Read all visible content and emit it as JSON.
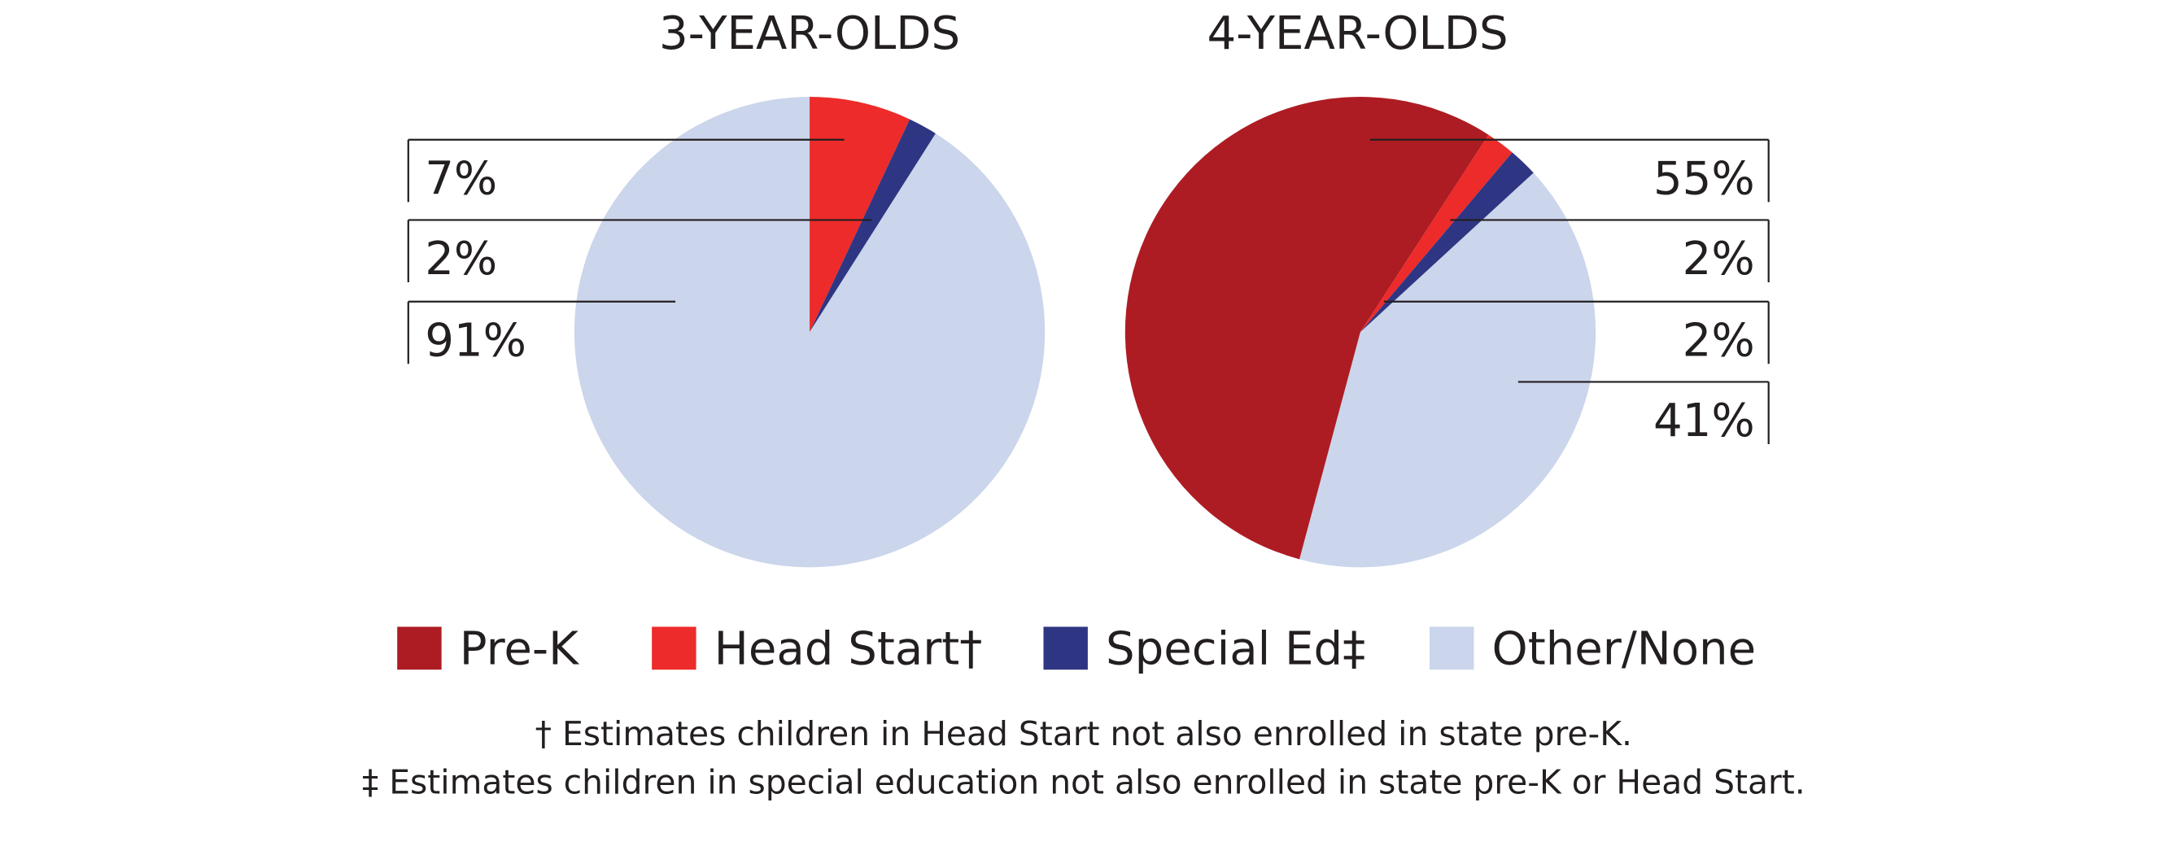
{
  "chart_data": [
    {
      "type": "pie",
      "title": "3-YEAR-OLDS",
      "values": [
        0,
        7,
        2,
        91
      ],
      "value_labels": [
        null,
        "7%",
        "2%",
        "91%"
      ]
    },
    {
      "type": "pie",
      "title": "4-YEAR-OLDS",
      "values": [
        55,
        2,
        2,
        41
      ],
      "value_labels": [
        "55%",
        "2%",
        "2%",
        "41%"
      ]
    }
  ],
  "legend": {
    "categories": [
      "Pre-K",
      "Head Start†",
      "Special Ed‡",
      "Other/None"
    ],
    "colors": [
      "#ae1c23",
      "#ed2b2a",
      "#2e3683",
      "#cbd5eb"
    ]
  },
  "footnotes": [
    "† Estimates children in Head Start not also enrolled in state pre-K.",
    "‡ Estimates children in special education not also enrolled in state pre-K or Head Start."
  ]
}
